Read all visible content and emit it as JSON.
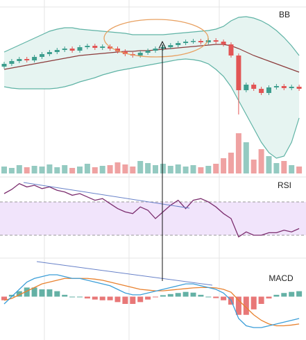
{
  "chart_data": [
    {
      "type": "candlestick",
      "title": "BB",
      "open": [
        104,
        108,
        112,
        115,
        113,
        118,
        122,
        125,
        128,
        130,
        127,
        132,
        134,
        131,
        133,
        130,
        126,
        122,
        120,
        124,
        127,
        130,
        132,
        135,
        138,
        140,
        141,
        139,
        142,
        140,
        136,
        120,
        70,
        78,
        72,
        66,
        74,
        76,
        73,
        75
      ],
      "close": [
        108,
        112,
        115,
        113,
        118,
        122,
        125,
        128,
        130,
        127,
        132,
        134,
        131,
        133,
        130,
        126,
        122,
        120,
        124,
        127,
        130,
        132,
        135,
        138,
        140,
        141,
        139,
        142,
        140,
        136,
        120,
        70,
        78,
        72,
        66,
        74,
        76,
        73,
        75,
        72
      ],
      "high": [
        111,
        115,
        118,
        118,
        121,
        125,
        128,
        131,
        133,
        133,
        135,
        137,
        137,
        136,
        136,
        133,
        129,
        125,
        127,
        130,
        133,
        135,
        138,
        141,
        143,
        144,
        144,
        145,
        145,
        143,
        139,
        123,
        81,
        81,
        75,
        77,
        79,
        79,
        78,
        78
      ],
      "low": [
        101,
        105,
        109,
        110,
        110,
        115,
        119,
        122,
        125,
        124,
        124,
        129,
        128,
        128,
        127,
        123,
        119,
        117,
        117,
        121,
        124,
        127,
        129,
        132,
        135,
        137,
        136,
        136,
        137,
        133,
        117,
        35,
        67,
        69,
        63,
        63,
        71,
        70,
        70,
        69
      ],
      "upper": [
        125,
        130,
        135,
        140,
        145,
        150,
        155,
        158,
        160,
        160,
        158,
        157,
        156,
        155,
        154,
        153,
        152,
        150,
        150,
        150,
        150,
        150,
        151,
        152,
        153,
        154,
        155,
        156,
        158,
        162,
        170,
        175,
        176,
        174,
        170,
        164,
        156,
        146,
        134,
        120
      ],
      "middle": [
        100,
        102,
        104,
        106,
        108,
        110,
        112,
        114,
        116,
        118,
        120,
        121,
        122,
        123,
        124,
        125,
        126,
        126,
        127,
        127,
        128,
        129,
        130,
        131,
        132,
        133,
        134,
        135,
        136,
        136,
        134,
        130,
        125,
        120,
        116,
        112,
        108,
        104,
        100,
        96
      ],
      "lower": [
        75,
        73,
        72,
        72,
        72,
        72,
        72,
        73,
        75,
        78,
        82,
        85,
        88,
        92,
        95,
        98,
        100,
        102,
        104,
        106,
        108,
        110,
        112,
        114,
        115,
        114,
        112,
        108,
        100,
        90,
        75,
        55,
        35,
        15,
        -5,
        -20,
        -28,
        -25,
        -5,
        30
      ],
      "volume": [
        10,
        8,
        12,
        9,
        11,
        10,
        13,
        9,
        12,
        8,
        10,
        14,
        9,
        11,
        12,
        16,
        13,
        10,
        18,
        15,
        12,
        14,
        11,
        13,
        10,
        12,
        9,
        11,
        14,
        22,
        30,
        58,
        45,
        20,
        35,
        25,
        15,
        18,
        12,
        10
      ],
      "up_color": "#3d9e8e",
      "down_color": "#e25555",
      "band_color": "#5fb3a5",
      "middle_color": "#8b3a3a",
      "ylim": [
        -30,
        190
      ],
      "volume_ylim": [
        0,
        60
      ]
    },
    {
      "type": "line",
      "title": "RSI",
      "values": [
        80,
        85,
        92,
        88,
        90,
        86,
        88,
        84,
        82,
        78,
        80,
        76,
        72,
        74,
        68,
        62,
        58,
        56,
        64,
        60,
        50,
        58,
        66,
        72,
        62,
        72,
        74,
        70,
        64,
        56,
        50,
        28,
        34,
        30,
        30,
        33,
        33,
        36,
        34,
        38
      ],
      "color": "#7b2d6e",
      "ylim": [
        0,
        100
      ],
      "band": [
        30,
        70
      ]
    },
    {
      "type": "macd",
      "title": "MACD",
      "macd": [
        -2,
        0,
        2,
        4,
        5,
        5.5,
        6,
        6,
        5.5,
        5,
        5,
        4.5,
        4,
        3.5,
        3,
        2,
        1,
        0.5,
        0.5,
        1,
        1.5,
        2,
        2.5,
        3,
        3.5,
        3.5,
        3,
        2.5,
        2,
        1,
        -1,
        -6,
        -8,
        -8.5,
        -8.5,
        -8,
        -7.5,
        -7,
        -6.5,
        -6
      ],
      "signal": [
        -1,
        -0.5,
        0.5,
        1.5,
        2.5,
        3.5,
        4,
        4.5,
        5,
        5,
        5,
        5,
        4.8,
        4.5,
        4,
        3.5,
        3,
        2.5,
        2,
        1.8,
        1.6,
        1.6,
        1.8,
        2,
        2.2,
        2.4,
        2.5,
        2.5,
        2.4,
        2,
        1.2,
        -1,
        -3,
        -5,
        -6.5,
        -7.5,
        -8,
        -8,
        -7.8,
        -7.5
      ],
      "histogram": [
        -1,
        0.5,
        1.5,
        2.5,
        2.5,
        2,
        2,
        1.5,
        0.5,
        0,
        0,
        -0.5,
        -0.8,
        -1,
        -1,
        -1.5,
        -2,
        -2,
        -1.5,
        -0.8,
        -0.1,
        0.4,
        0.7,
        1,
        1.3,
        1.1,
        0.5,
        0,
        -0.4,
        -1,
        -2.2,
        -5,
        -5,
        -3.5,
        -2,
        -0.5,
        0.5,
        1,
        1.3,
        1.5
      ],
      "macd_color": "#3b9ed8",
      "signal_color": "#e8812e",
      "up_color": "#3d9e8e",
      "down_color": "#e25555",
      "ylim": [
        -10,
        10
      ]
    }
  ]
}
